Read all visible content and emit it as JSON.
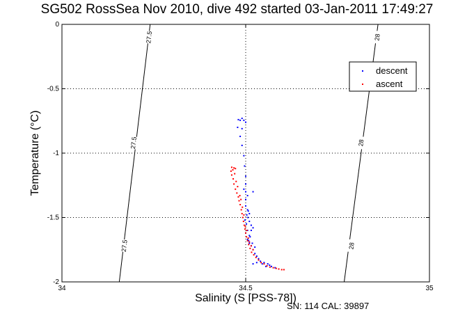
{
  "chart_data": {
    "type": "scatter",
    "title": "SG502 RossSea Nov 2010, dive 492 started 03-Jan-2011 17:49:27",
    "xlabel": "Salinity (S [PSS-78])",
    "ylabel": "Temperature (°C)",
    "xlim": [
      34,
      35
    ],
    "ylim": [
      -2,
      0
    ],
    "x_ticks": [
      "34",
      "34.5",
      "35"
    ],
    "y_ticks": [
      "0",
      "-0.5",
      "-1",
      "-1.5",
      "-2"
    ],
    "grid": "dotted, major ticks",
    "legend_position": "top-right",
    "footer": "SN: 114  CAL: 39897",
    "isopycnals": [
      {
        "label": "27.5",
        "points": [
          [
            34.156,
            -2.0
          ],
          [
            34.24,
            0.0
          ]
        ],
        "label_positions": [
          [
            34.17,
            -1.72
          ],
          [
            34.195,
            -0.92
          ],
          [
            34.237,
            -0.1
          ]
        ]
      },
      {
        "label": "28",
        "points": [
          [
            34.768,
            -2.0
          ],
          [
            34.86,
            0.0
          ]
        ],
        "label_positions": [
          [
            34.788,
            -1.72
          ],
          [
            34.814,
            -0.92
          ],
          [
            34.858,
            -0.1
          ]
        ]
      }
    ],
    "series": [
      {
        "name": "descent",
        "color": "#0000ff",
        "points": [
          [
            34.48,
            -0.74
          ],
          [
            34.485,
            -0.745
          ],
          [
            34.49,
            -0.73
          ],
          [
            34.495,
            -0.745
          ],
          [
            34.5,
            -0.76
          ],
          [
            34.478,
            -0.8
          ],
          [
            34.49,
            -0.81
          ],
          [
            34.485,
            -0.87
          ],
          [
            34.49,
            -0.94
          ],
          [
            34.495,
            -1.02
          ],
          [
            34.497,
            -1.1
          ],
          [
            34.5,
            -1.18
          ],
          [
            34.5,
            -1.24
          ],
          [
            34.495,
            -1.28
          ],
          [
            34.5,
            -1.3
          ],
          [
            34.505,
            -1.33
          ],
          [
            34.5,
            -1.36
          ],
          [
            34.52,
            -1.3
          ],
          [
            34.5,
            -1.41
          ],
          [
            34.505,
            -1.44
          ],
          [
            34.51,
            -1.47
          ],
          [
            34.506,
            -1.5
          ],
          [
            34.51,
            -1.53
          ],
          [
            34.515,
            -1.56
          ],
          [
            34.52,
            -1.58
          ],
          [
            34.515,
            -1.6
          ],
          [
            34.51,
            -1.64
          ],
          [
            34.505,
            -1.67
          ],
          [
            34.51,
            -1.7
          ],
          [
            34.515,
            -1.72
          ],
          [
            34.52,
            -1.75
          ],
          [
            34.525,
            -1.78
          ],
          [
            34.53,
            -1.8
          ],
          [
            34.535,
            -1.82
          ],
          [
            34.54,
            -1.84
          ],
          [
            34.545,
            -1.86
          ],
          [
            34.53,
            -1.85
          ],
          [
            34.52,
            -1.86
          ],
          [
            34.55,
            -1.85
          ],
          [
            34.56,
            -1.86
          ],
          [
            34.565,
            -1.87
          ],
          [
            34.57,
            -1.88
          ],
          [
            34.555,
            -1.88
          ],
          [
            34.58,
            -1.89
          ],
          [
            34.59,
            -1.9
          ],
          [
            34.508,
            -1.68
          ],
          [
            34.512,
            -1.65
          ],
          [
            34.518,
            -1.7
          ],
          [
            34.525,
            -1.73
          ],
          [
            34.505,
            -1.6
          ],
          [
            34.502,
            -1.55
          ],
          [
            34.498,
            -1.52
          ],
          [
            34.503,
            -1.48
          ],
          [
            34.507,
            -1.45
          ],
          [
            34.5,
            -1.62
          ]
        ]
      },
      {
        "name": "ascent",
        "color": "#ff0000",
        "points": [
          [
            34.462,
            -1.11
          ],
          [
            34.468,
            -1.115
          ],
          [
            34.472,
            -1.12
          ],
          [
            34.465,
            -1.13
          ],
          [
            34.46,
            -1.14
          ],
          [
            34.462,
            -1.17
          ],
          [
            34.466,
            -1.2
          ],
          [
            34.468,
            -1.24
          ],
          [
            34.472,
            -1.28
          ],
          [
            34.476,
            -1.31
          ],
          [
            34.48,
            -1.34
          ],
          [
            34.482,
            -1.37
          ],
          [
            34.485,
            -1.4
          ],
          [
            34.488,
            -1.44
          ],
          [
            34.49,
            -1.47
          ],
          [
            34.492,
            -1.5
          ],
          [
            34.494,
            -1.53
          ],
          [
            34.496,
            -1.56
          ],
          [
            34.498,
            -1.59
          ],
          [
            34.5,
            -1.62
          ],
          [
            34.502,
            -1.65
          ],
          [
            34.505,
            -1.68
          ],
          [
            34.508,
            -1.71
          ],
          [
            34.512,
            -1.74
          ],
          [
            34.516,
            -1.77
          ],
          [
            34.522,
            -1.79
          ],
          [
            34.528,
            -1.81
          ],
          [
            34.535,
            -1.83
          ],
          [
            34.542,
            -1.85
          ],
          [
            34.55,
            -1.86
          ],
          [
            34.558,
            -1.875
          ],
          [
            34.566,
            -1.885
          ],
          [
            34.575,
            -1.89
          ],
          [
            34.583,
            -1.895
          ],
          [
            34.59,
            -1.9
          ],
          [
            34.598,
            -1.905
          ],
          [
            34.604,
            -1.905
          ],
          [
            34.47,
            -1.16
          ],
          [
            34.474,
            -1.22
          ],
          [
            34.478,
            -1.26
          ],
          [
            34.484,
            -1.33
          ],
          [
            34.487,
            -1.36
          ],
          [
            34.491,
            -1.42
          ],
          [
            34.495,
            -1.48
          ],
          [
            34.499,
            -1.57
          ],
          [
            34.503,
            -1.6
          ],
          [
            34.507,
            -1.66
          ],
          [
            34.51,
            -1.69
          ],
          [
            34.515,
            -1.72
          ],
          [
            34.52,
            -1.75
          ]
        ]
      }
    ]
  }
}
